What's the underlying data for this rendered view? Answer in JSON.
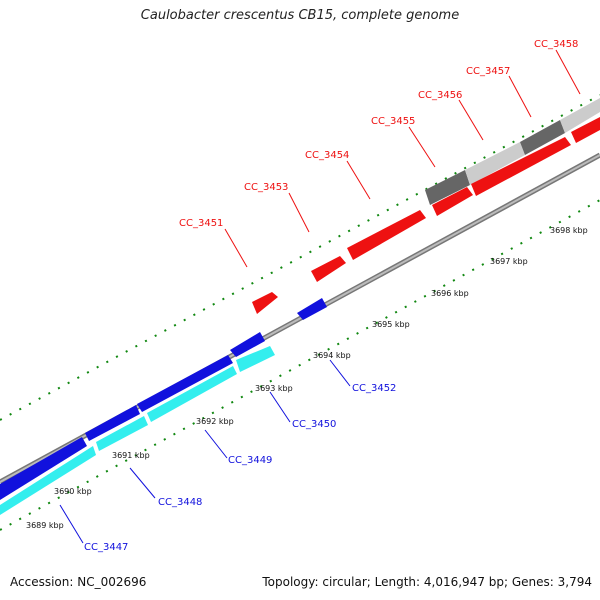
{
  "title": "Caulobacter crescentus CB15, complete genome",
  "footer": {
    "accession": "Accession: NC_002696",
    "summary": "Topology: circular; Length: 4,016,947 bp; Genes: 3,794"
  },
  "colors": {
    "forward_gene": "#ee1111",
    "reverse_gene": "#1111dd",
    "cds_track": "#33eeee",
    "gc_dark": "#666666",
    "gc_light": "#cccccc",
    "backbone": "#888888",
    "ticks": "#118811"
  },
  "kbp_labels": [
    "3689 kbp",
    "3690 kbp",
    "3691 kbp",
    "3692 kbp",
    "3693 kbp",
    "3694 kbp",
    "3695 kbp",
    "3696 kbp",
    "3697 kbp",
    "3698 kbp"
  ],
  "forward_genes": [
    "CC_3451",
    "CC_3453",
    "CC_3454",
    "CC_3455",
    "CC_3456",
    "CC_3457",
    "CC_3458"
  ],
  "reverse_genes": [
    "CC_3447",
    "CC_3448",
    "CC_3449",
    "CC_3450",
    "CC_3452"
  ]
}
